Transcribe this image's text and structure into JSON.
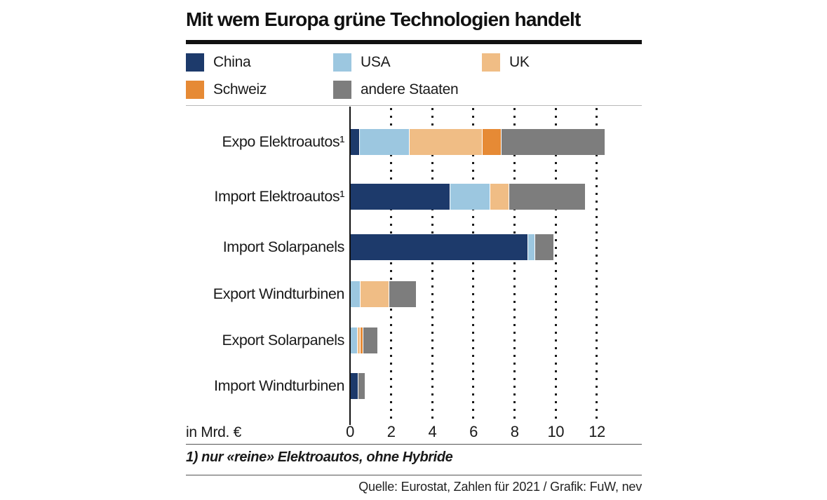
{
  "title": "Mit wem Europa grüne Technologien handelt",
  "legend": {
    "items": [
      {
        "label": "China",
        "color": "#1d3a6b"
      },
      {
        "label": "USA",
        "color": "#9cc7e0"
      },
      {
        "label": "UK",
        "color": "#f0bd85"
      },
      {
        "label": "Schweiz",
        "color": "#e68a35"
      },
      {
        "label": "andere Staaten",
        "color": "#7d7d7d"
      }
    ]
  },
  "chart_data": {
    "type": "bar",
    "orientation": "horizontal-stacked",
    "title": "Mit wem Europa grüne Technologien handelt",
    "xlabel": "in Mrd. €",
    "categories": [
      "Expo Elektroautos¹",
      "Import Elektroautos¹",
      "Import Solarpanels",
      "Export Windturbinen",
      "Export Solarpanels",
      "Import Windturbinen"
    ],
    "series": [
      {
        "name": "China",
        "color": "#1d3a6b",
        "values": [
          0.4,
          4.8,
          8.6,
          0,
          0,
          0.35
        ]
      },
      {
        "name": "USA",
        "color": "#9cc7e0",
        "values": [
          2.4,
          1.9,
          0.3,
          0.45,
          0.3,
          0
        ]
      },
      {
        "name": "UK",
        "color": "#f0bd85",
        "values": [
          3.5,
          0.9,
          0,
          1.35,
          0.1,
          0
        ]
      },
      {
        "name": "Schweiz",
        "color": "#e68a35",
        "values": [
          0.9,
          0,
          0,
          0,
          0.1,
          0
        ]
      },
      {
        "name": "andere Staaten",
        "color": "#7d7d7d",
        "values": [
          5.0,
          3.7,
          0.9,
          1.3,
          0.7,
          0.3
        ]
      }
    ],
    "x_ticks": [
      0,
      2,
      4,
      6,
      8,
      10,
      12
    ],
    "xlim": [
      0,
      14.2
    ],
    "grid": "dotted-vertical",
    "legend_position": "top"
  },
  "footnote": "1) nur «reine» Elektroautos, ohne Hybride",
  "source": "Quelle: Eurostat, Zahlen für 2021 / Grafik: FuW, nev"
}
